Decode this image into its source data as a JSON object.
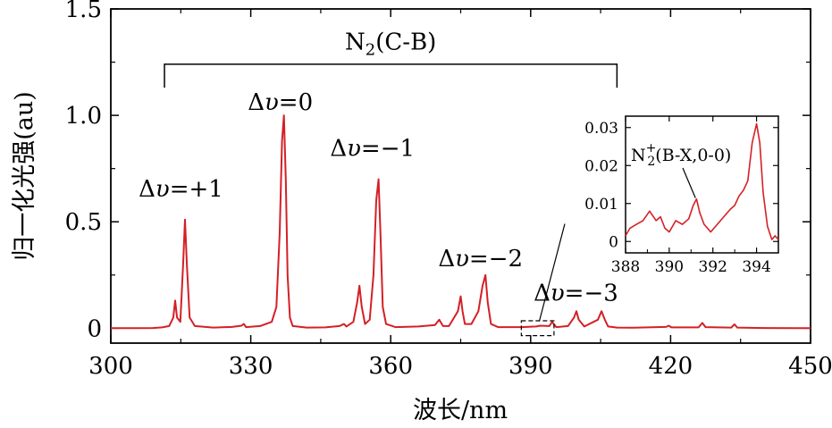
{
  "chart_data": [
    {
      "type": "line",
      "title": "",
      "xlabel": "波长/nm",
      "ylabel": "归一化光强(au)",
      "xlim": [
        300,
        450
      ],
      "ylim": [
        -0.07,
        1.5
      ],
      "xticks": [
        "300",
        "330",
        "360",
        "390",
        "420",
        "450"
      ],
      "yticks": [
        "0",
        "0.5",
        "1.0",
        "1.5"
      ],
      "grid": false,
      "legend": "none",
      "series_color": "#d42026",
      "bracket_label": {
        "main": "N",
        "sub": "2",
        "tail": "(C-B)"
      },
      "bracket_range": [
        311.5,
        408.5
      ],
      "peak_labels": [
        {
          "prefix": "Δ",
          "var": "υ",
          "text": "=+1",
          "x": 315.8,
          "y": 0.51
        },
        {
          "prefix": "Δ",
          "var": "υ",
          "text": "=0",
          "x": 337.1,
          "y": 1.0
        },
        {
          "prefix": "Δ",
          "var": "υ",
          "text": "=−1",
          "x": 357.6,
          "y": 0.7
        },
        {
          "prefix": "Δ",
          "var": "υ",
          "text": "=−2",
          "x": 380.4,
          "y": 0.25
        },
        {
          "prefix": "Δ",
          "var": "υ",
          "text": "=−3",
          "x": 399.7,
          "y": 0.08
        }
      ],
      "series": [
        {
          "x": [
            300,
            305,
            309,
            311,
            312.5,
            313.4,
            313.8,
            314.2,
            314.9,
            315.5,
            315.9,
            316.3,
            316.9,
            318,
            322,
            326,
            328,
            328.5,
            329,
            332,
            334.5,
            335.5,
            336.2,
            336.7,
            337.1,
            337.5,
            337.9,
            338.4,
            339,
            342,
            346,
            349,
            350,
            350.5,
            352,
            352.8,
            353.3,
            353.8,
            354.5,
            355.5,
            356.3,
            356.9,
            357.4,
            357.8,
            358.3,
            359,
            361,
            366,
            369.5,
            370.4,
            371.2,
            372.5,
            374.4,
            375,
            375.4,
            375.9,
            377.3,
            378.8,
            379.7,
            380.3,
            380.8,
            381.5,
            383,
            388,
            391.2,
            392,
            394,
            394.6,
            395.5,
            398,
            399.3,
            399.8,
            400.3,
            401.5,
            404.4,
            405.2,
            405.9,
            406.6,
            408.5,
            412,
            419,
            419.6,
            420.2,
            426,
            426.8,
            427.5,
            433,
            433.7,
            434.3,
            440,
            450
          ],
          "y": [
            0.0,
            0.0,
            0.001,
            0.004,
            0.01,
            0.05,
            0.13,
            0.05,
            0.03,
            0.3,
            0.51,
            0.3,
            0.05,
            0.01,
            0.003,
            0.006,
            0.012,
            0.02,
            0.005,
            0.01,
            0.03,
            0.1,
            0.45,
            0.88,
            1.0,
            0.7,
            0.25,
            0.05,
            0.01,
            0.003,
            0.004,
            0.01,
            0.02,
            0.008,
            0.03,
            0.12,
            0.2,
            0.1,
            0.02,
            0.04,
            0.25,
            0.6,
            0.7,
            0.45,
            0.1,
            0.02,
            0.005,
            0.008,
            0.015,
            0.04,
            0.01,
            0.01,
            0.08,
            0.15,
            0.08,
            0.02,
            0.02,
            0.08,
            0.2,
            0.25,
            0.12,
            0.02,
            0.005,
            0.005,
            0.008,
            0.012,
            0.01,
            0.03,
            0.005,
            0.01,
            0.05,
            0.08,
            0.04,
            0.008,
            0.04,
            0.08,
            0.04,
            0.008,
            0.003,
            0.002,
            0.006,
            0.012,
            0.004,
            0.004,
            0.025,
            0.005,
            0.003,
            0.018,
            0.003,
            0.001,
            0.0
          ]
        }
      ]
    },
    {
      "type": "line",
      "title": "",
      "xlabel": "",
      "ylabel": "",
      "xlim": [
        388,
        395
      ],
      "ylim": [
        -0.003,
        0.033
      ],
      "xticks": [
        "388",
        "390",
        "392",
        "394"
      ],
      "yticks": [
        "0",
        "0.01",
        "0.02",
        "0.03"
      ],
      "grid": false,
      "legend": "none",
      "annotation": {
        "main": "N",
        "sub": "2",
        "sup": "+",
        "tail": "(B-X,0-0)",
        "x": 391.2,
        "y": 0.011
      },
      "series": [
        {
          "x": [
            388,
            388.2,
            388.5,
            388.8,
            389.1,
            389.4,
            389.6,
            389.8,
            390.0,
            390.3,
            390.6,
            390.9,
            391.1,
            391.25,
            391.4,
            391.6,
            391.9,
            392.2,
            392.5,
            392.8,
            393.0,
            393.2,
            393.4,
            393.6,
            393.8,
            394.0,
            394.15,
            394.3,
            394.5,
            394.7,
            394.85,
            395.0
          ],
          "y": [
            0.0015,
            0.0035,
            0.0045,
            0.0055,
            0.008,
            0.0055,
            0.0065,
            0.0035,
            0.0025,
            0.0055,
            0.0045,
            0.006,
            0.0095,
            0.0112,
            0.0075,
            0.0045,
            0.0025,
            0.0045,
            0.0065,
            0.0085,
            0.0095,
            0.012,
            0.0135,
            0.016,
            0.026,
            0.031,
            0.026,
            0.013,
            0.004,
            0.0005,
            0.0015,
            0.0005
          ]
        }
      ]
    }
  ]
}
